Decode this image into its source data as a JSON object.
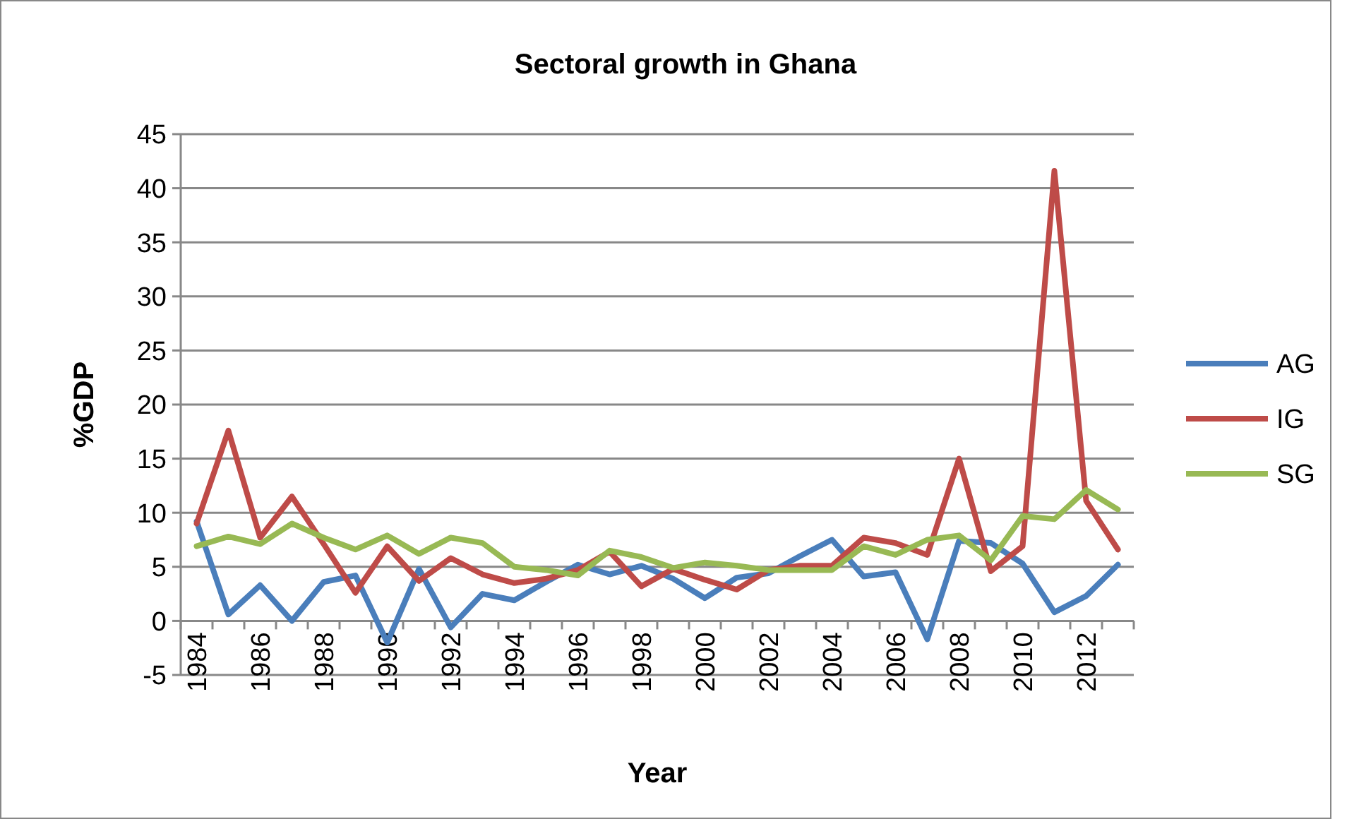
{
  "chart_data": {
    "type": "line",
    "title": "Sectoral growth in Ghana",
    "xlabel": "Year",
    "ylabel": "%GDP",
    "categories": [
      "1984",
      null,
      "1986",
      null,
      "1988",
      null,
      "1990",
      null,
      "1992",
      null,
      "1994",
      null,
      "1996",
      null,
      "1998",
      null,
      "2000",
      null,
      "2002",
      null,
      "2004",
      null,
      "2006",
      null,
      "2008",
      null,
      "2010",
      null,
      "2012",
      null
    ],
    "series": [
      {
        "name": "AG",
        "color": "#4a7ebb",
        "values": [
          9.2,
          0.6,
          3.3,
          0,
          3.6,
          4.2,
          -2,
          4.8,
          -0.6,
          2.5,
          1.9,
          3.6,
          5.2,
          4.3,
          5.1,
          3.9,
          2.1,
          4,
          4.4,
          6,
          7.5,
          4.1,
          4.5,
          -1.7,
          7.4,
          7.2,
          5.3,
          0.8,
          2.3,
          5.2
        ]
      },
      {
        "name": "IG",
        "color": "#be4b48",
        "values": [
          9,
          17.6,
          7.7,
          11.5,
          7.1,
          2.6,
          6.9,
          3.7,
          5.8,
          4.3,
          3.5,
          3.9,
          4.7,
          6.4,
          3.2,
          4.8,
          3.8,
          2.9,
          4.7,
          5.1,
          5.1,
          7.7,
          7.2,
          6.1,
          15,
          4.6,
          6.9,
          41.6,
          11.1,
          6.6
        ]
      },
      {
        "name": "SG",
        "color": "#98b954",
        "values": [
          6.9,
          7.8,
          7.1,
          9,
          7.7,
          6.6,
          7.9,
          6.2,
          7.7,
          7.2,
          5,
          4.7,
          4.2,
          6.5,
          5.9,
          4.9,
          5.4,
          5.1,
          4.7,
          4.7,
          4.7,
          6.9,
          6.1,
          7.5,
          7.9,
          5.6,
          9.7,
          9.4,
          12.1,
          10.3
        ]
      }
    ],
    "ylim": [
      -5,
      45
    ],
    "yticks": [
      -5,
      0,
      5,
      10,
      15,
      20,
      25,
      30,
      35,
      40,
      45
    ],
    "grid": "y",
    "legend": "right",
    "marker": "none",
    "line_style": "solid"
  }
}
